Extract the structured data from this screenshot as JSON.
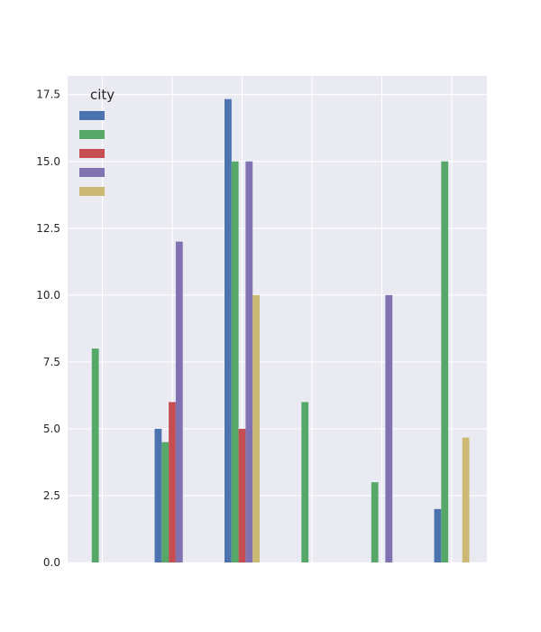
{
  "chart_data": {
    "type": "bar",
    "title": "",
    "xlabel": "",
    "ylabel": "",
    "ylim": [
      0,
      18.2
    ],
    "yticks": [
      "0.0",
      "2.5",
      "5.0",
      "7.5",
      "10.0",
      "12.5",
      "15.0",
      "17.5"
    ],
    "categories": [
      "",
      "",
      "",
      "",
      "",
      ""
    ],
    "legend": {
      "title": "city",
      "position": "upper-left"
    },
    "grid": true,
    "series": [
      {
        "name": "",
        "color": "#4c72b0",
        "values": [
          0,
          5,
          17.33,
          0,
          0,
          2
        ]
      },
      {
        "name": "",
        "color": "#55a868",
        "values": [
          8,
          4.5,
          15,
          6,
          3,
          15
        ]
      },
      {
        "name": "",
        "color": "#c44e52",
        "values": [
          0,
          6,
          5,
          0,
          0,
          0
        ]
      },
      {
        "name": "",
        "color": "#8172b2",
        "values": [
          0,
          12,
          15,
          0,
          10,
          0
        ]
      },
      {
        "name": "",
        "color": "#ccb974",
        "values": [
          0,
          0,
          10,
          0,
          0,
          4.67
        ]
      }
    ]
  }
}
